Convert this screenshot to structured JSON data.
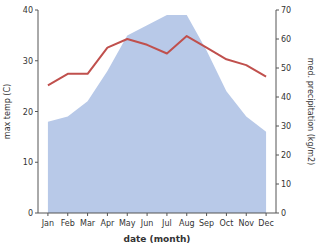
{
  "chart_data": {
    "type": "area",
    "categories": [
      "Jan",
      "Feb",
      "Mar",
      "Apr",
      "May",
      "Jun",
      "Jul",
      "Aug",
      "Sep",
      "Oct",
      "Nov",
      "Dec"
    ],
    "series": [
      {
        "type": "area",
        "color": "#b8c9e8",
        "values": [
          18,
          19,
          22,
          28,
          35,
          37,
          39,
          39,
          32,
          24,
          19,
          16
        ]
      },
      {
        "type": "line",
        "axis": "y2",
        "color": "#c0504d",
        "values": [
          44,
          48,
          48,
          57,
          60,
          58,
          55,
          61,
          57,
          53,
          51,
          47
        ]
      }
    ],
    "xlabel": "date (month)",
    "ylabel": "max temp (C)",
    "y2label": "med. precipitation (kg/m2)",
    "ylim": [
      0,
      40
    ],
    "yticks": [
      0,
      10,
      20,
      30,
      40
    ],
    "y2lim": [
      0,
      70
    ],
    "y2ticks": [
      0,
      10,
      20,
      30,
      40,
      50,
      60,
      70
    ],
    "grid": false
  }
}
